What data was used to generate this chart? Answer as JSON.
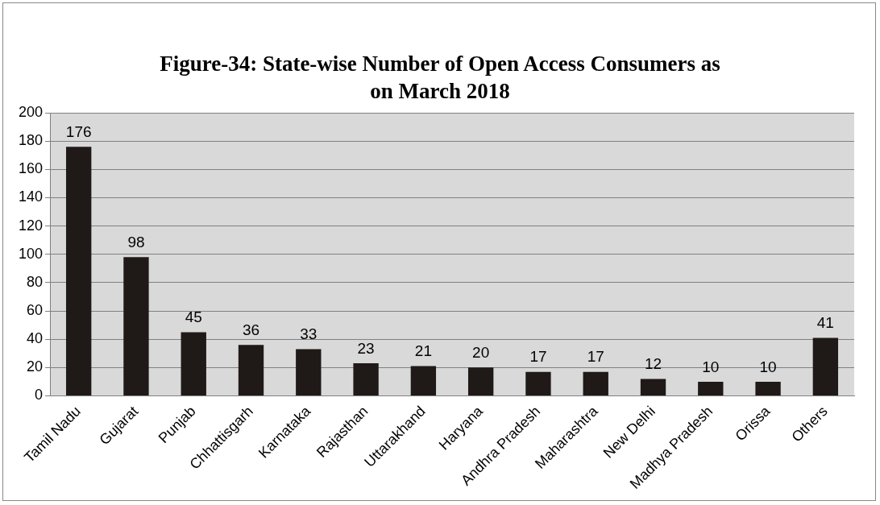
{
  "chart_data": {
    "type": "bar",
    "title": "Figure-34: State-wise Number of Open Access Consumers as on March 2018",
    "categories": [
      "Tamil Nadu",
      "Gujarat",
      "Punjab",
      "Chhattisgarh",
      "Karnataka",
      "Rajasthan",
      "Uttarakhand",
      "Haryana",
      "Andhra Pradesh",
      "Maharashtra",
      "New Delhi",
      "Madhya Pradesh",
      "Orissa",
      "Others"
    ],
    "values": [
      176,
      98,
      45,
      36,
      33,
      23,
      21,
      20,
      17,
      17,
      12,
      10,
      10,
      41
    ],
    "color": "#1f1a17",
    "ylim": [
      0,
      200
    ],
    "yticks": [
      0,
      20,
      40,
      60,
      80,
      100,
      120,
      140,
      160,
      180,
      200
    ],
    "grid": "y",
    "data_labels": true,
    "legend": false
  }
}
